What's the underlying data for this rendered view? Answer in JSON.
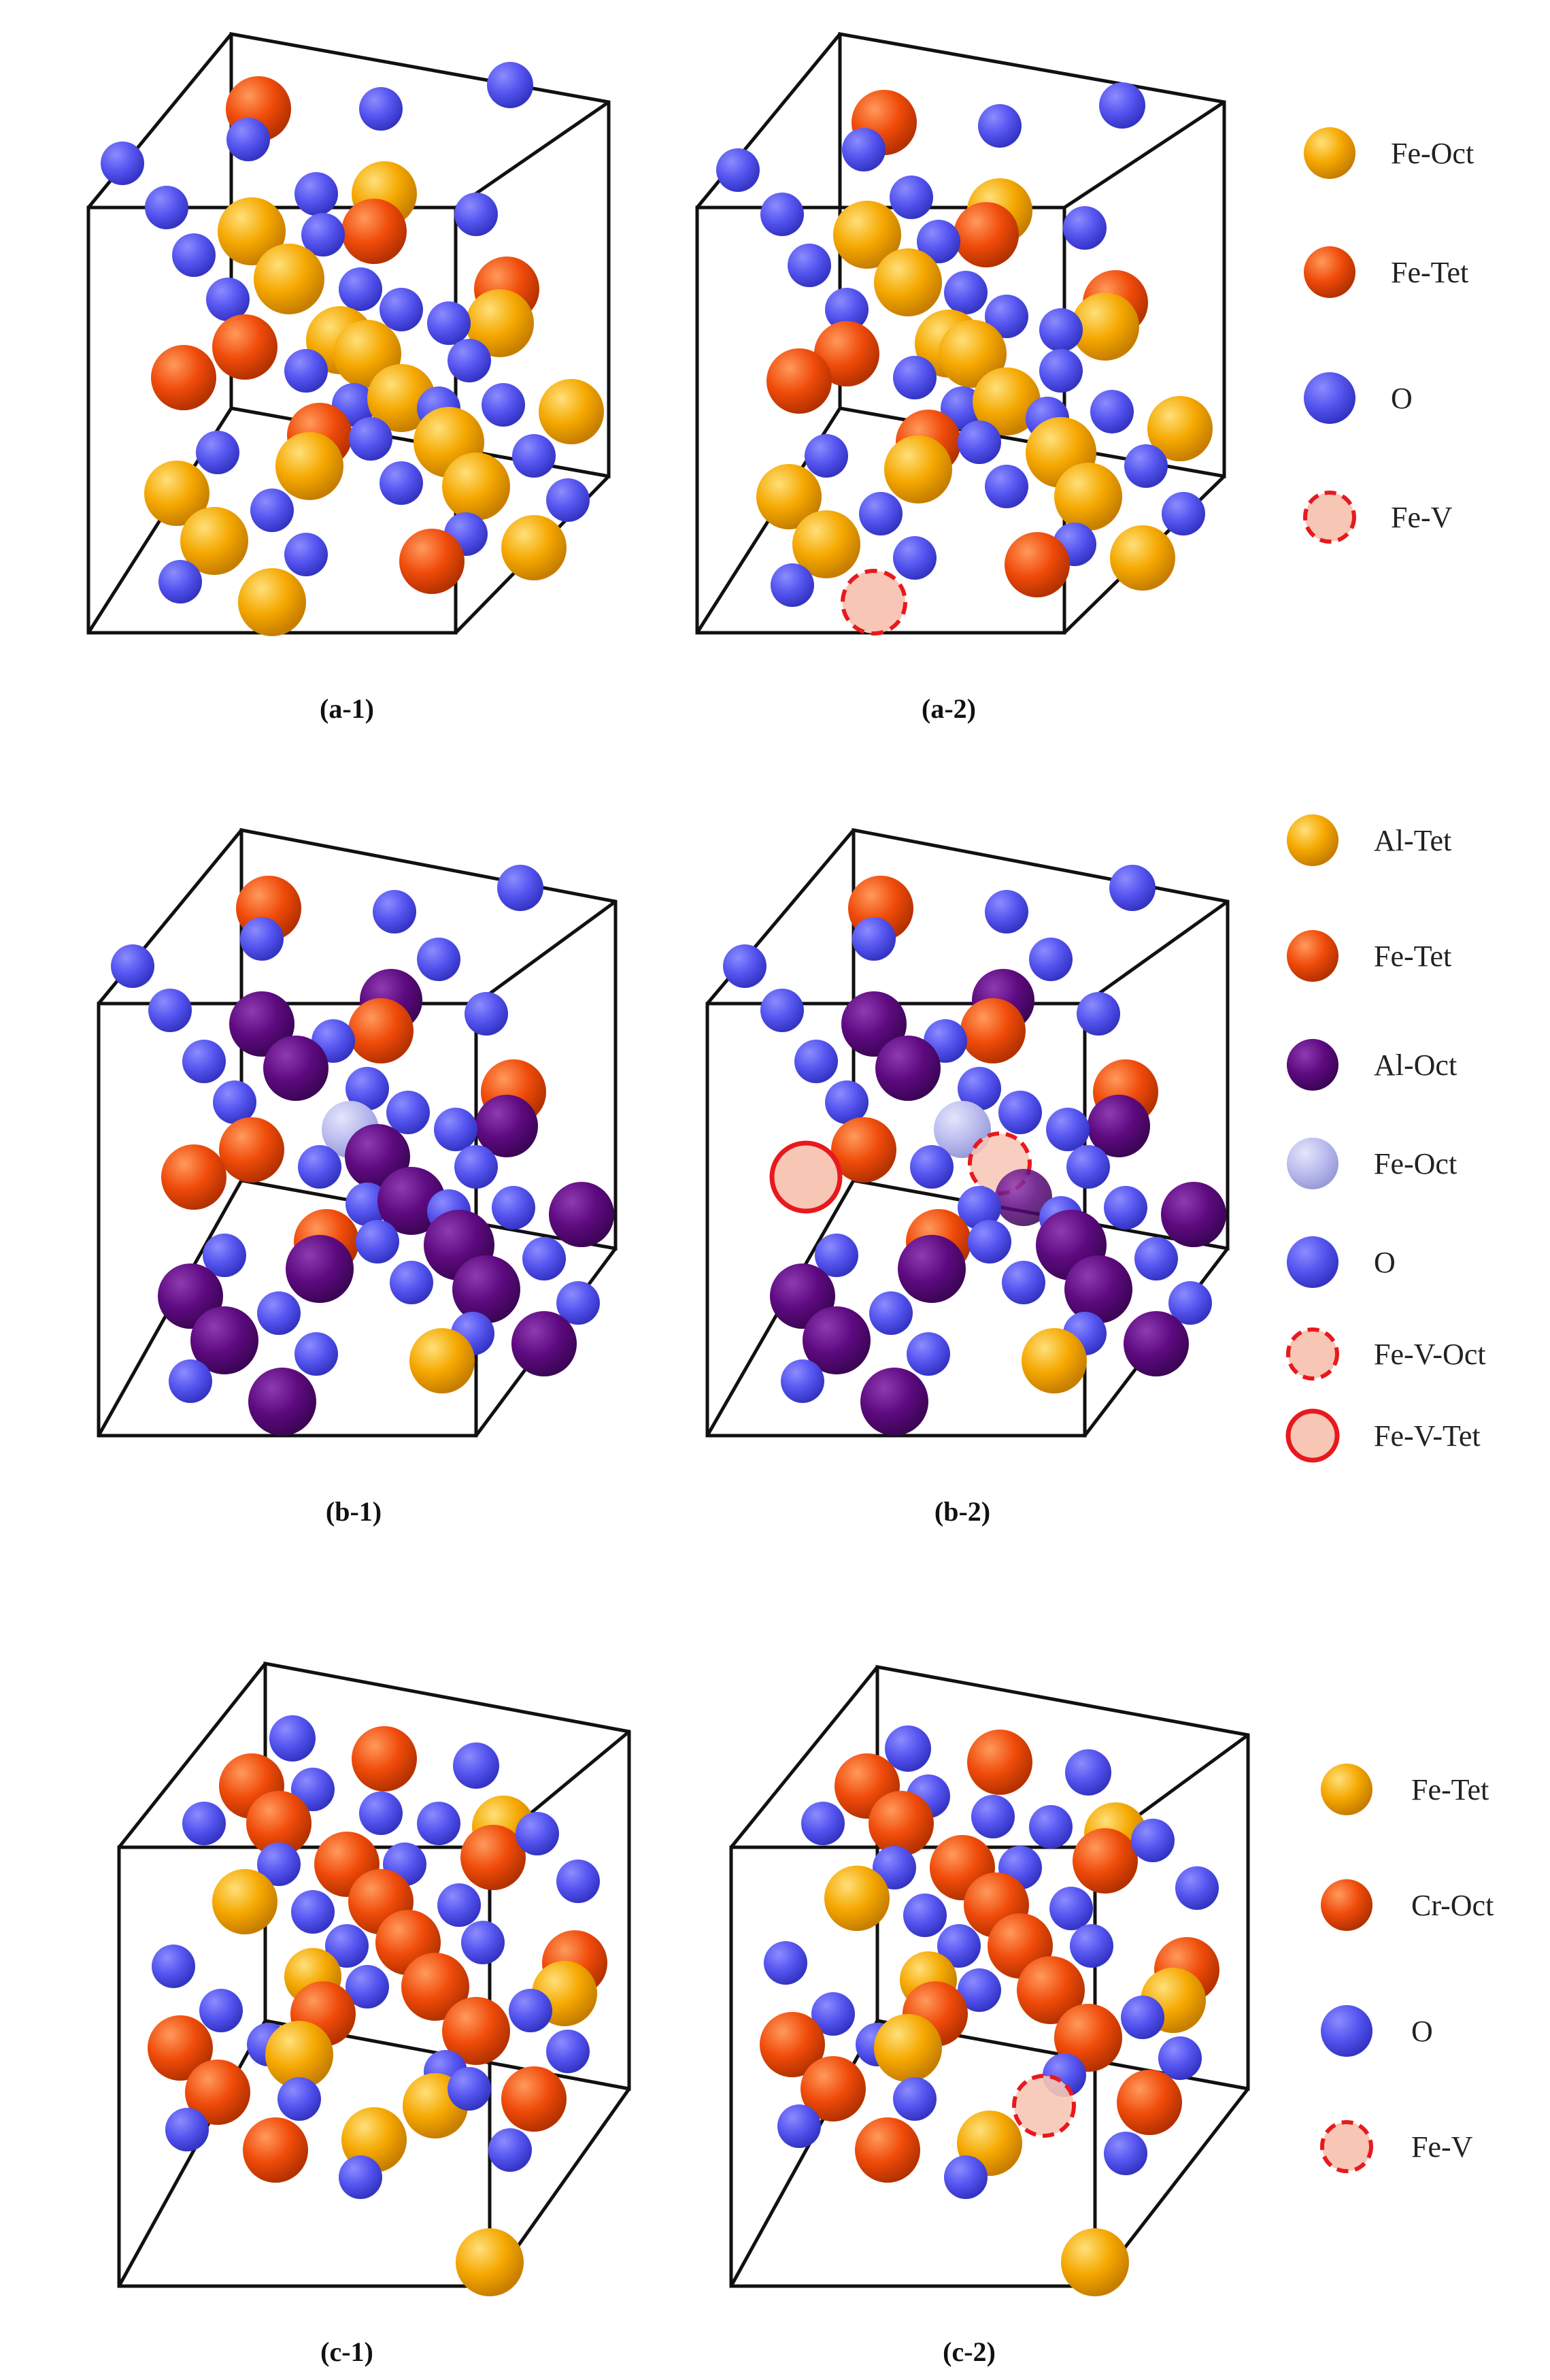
{
  "panels": [
    {
      "id": "a",
      "legend": [
        {
          "label": "Fe-Oct",
          "kind": "fe_oct_gold"
        },
        {
          "label": "Fe-Tet",
          "kind": "fe_tet_red"
        },
        {
          "label": "O",
          "kind": "o"
        },
        {
          "label": "Fe-V",
          "kind": "vac_dashed"
        }
      ],
      "captions": [
        "(a-1)",
        "(a-2)"
      ]
    },
    {
      "id": "b",
      "legend": [
        {
          "label": "Al-Tet",
          "kind": "al_tet_gold"
        },
        {
          "label": "Fe-Tet",
          "kind": "fe_tet_red"
        },
        {
          "label": "Al-Oct",
          "kind": "al_oct_purple"
        },
        {
          "label": "Fe-Oct",
          "kind": "fe_oct_pale"
        },
        {
          "label": "O",
          "kind": "o"
        },
        {
          "label": "Fe-V-Oct",
          "kind": "vac_dashed"
        },
        {
          "label": "Fe-V-Tet",
          "kind": "vac_solid"
        }
      ],
      "captions": [
        "(b-1)",
        "(b-2)"
      ]
    },
    {
      "id": "c",
      "legend": [
        {
          "label": "Fe-Tet",
          "kind": "fe_tet_gold"
        },
        {
          "label": "Cr-Oct",
          "kind": "cr_oct_red"
        },
        {
          "label": "O",
          "kind": "o"
        },
        {
          "label": "Fe-V",
          "kind": "vac_dashed"
        }
      ],
      "captions": [
        "(c-1)",
        "(c-2)"
      ]
    }
  ],
  "colors": {
    "gold": "#F5A800",
    "red": "#F04B0A",
    "blue": "#5555F0",
    "purple": "#5E0A80",
    "pale": "#B9BBEE",
    "vacancy_fill": "#F7C6B5",
    "vacancy_stroke": "#E8191E",
    "box_line": "#111111"
  }
}
